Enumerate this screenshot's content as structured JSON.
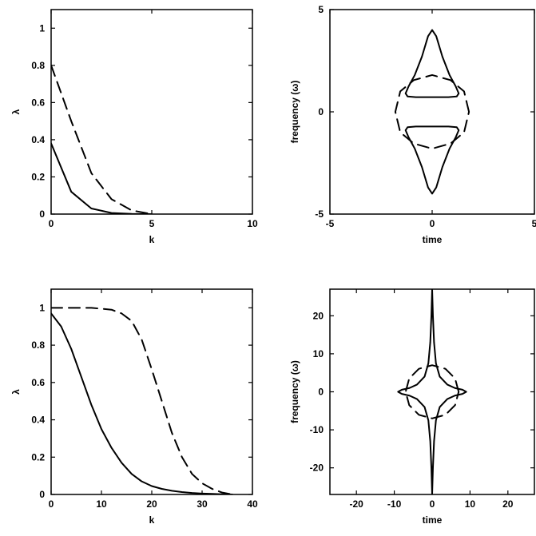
{
  "chart_data": [
    {
      "type": "line",
      "xlabel": "k",
      "ylabel": "λ",
      "xlim": [
        0,
        10
      ],
      "ylim": [
        0,
        1.1
      ],
      "xticks": [
        0,
        5,
        10
      ],
      "yticks": [
        0,
        0.2,
        0.4,
        0.6,
        0.8,
        1
      ],
      "series": [
        {
          "style": "solid",
          "x": [
            0,
            1,
            2,
            3,
            4,
            5
          ],
          "y": [
            0.38,
            0.12,
            0.03,
            0.006,
            0.001,
            0.0
          ]
        },
        {
          "style": "dashed",
          "x": [
            0,
            1,
            2,
            3,
            4,
            5
          ],
          "y": [
            0.8,
            0.5,
            0.22,
            0.08,
            0.02,
            0.0
          ]
        }
      ]
    },
    {
      "type": "line",
      "xlabel": "time",
      "ylabel": "frequency (ω)",
      "xlim": [
        -5,
        5
      ],
      "ylim": [
        -5,
        5
      ],
      "xticks": [
        -5,
        0,
        5
      ],
      "yticks": [
        -5,
        0,
        5
      ],
      "series": [
        {
          "style": "solid",
          "x": [
            0,
            -0.2,
            -0.5,
            -0.85,
            -1.15,
            -1.3,
            -1.2,
            -0.8,
            0,
            0.8,
            1.2,
            1.3,
            1.15,
            0.85,
            0.5,
            0.2,
            0
          ],
          "y": [
            4.0,
            3.7,
            2.7,
            1.8,
            1.25,
            0.9,
            0.75,
            0.72,
            0.72,
            0.72,
            0.75,
            0.9,
            1.25,
            1.8,
            2.7,
            3.7,
            4.0
          ]
        },
        {
          "style": "solid",
          "x": [
            0,
            -0.2,
            -0.5,
            -0.85,
            -1.15,
            -1.3,
            -1.2,
            -0.8,
            0,
            0.8,
            1.2,
            1.3,
            1.15,
            0.85,
            0.5,
            0.2,
            0
          ],
          "y": [
            -4.0,
            -3.7,
            -2.7,
            -1.8,
            -1.25,
            -0.9,
            -0.75,
            -0.72,
            -0.72,
            -0.72,
            -0.75,
            -0.9,
            -1.25,
            -1.8,
            -2.7,
            -3.7,
            -4.0
          ]
        },
        {
          "style": "dashed",
          "x": [
            1.8,
            1.56,
            0.9,
            0,
            -0.9,
            -1.56,
            -1.8,
            -1.56,
            -0.9,
            0,
            0.9,
            1.56,
            1.8
          ],
          "y": [
            0,
            1.0,
            1.55,
            1.8,
            1.55,
            1.0,
            0,
            -1.0,
            -1.55,
            -1.8,
            -1.55,
            -1.0,
            0
          ]
        }
      ]
    },
    {
      "type": "line",
      "xlabel": "k",
      "ylabel": "λ",
      "xlim": [
        0,
        40
      ],
      "ylim": [
        0,
        1.1
      ],
      "xticks": [
        0,
        10,
        20,
        30,
        40
      ],
      "yticks": [
        0,
        0.2,
        0.4,
        0.6,
        0.8,
        1
      ],
      "series": [
        {
          "style": "solid",
          "x": [
            0,
            2,
            4,
            6,
            8,
            10,
            12,
            14,
            16,
            18,
            20,
            22,
            24,
            26,
            28,
            30,
            32,
            34,
            36
          ],
          "y": [
            0.97,
            0.9,
            0.78,
            0.63,
            0.48,
            0.35,
            0.25,
            0.17,
            0.11,
            0.07,
            0.045,
            0.03,
            0.02,
            0.013,
            0.008,
            0.005,
            0.003,
            0.001,
            0.0
          ]
        },
        {
          "style": "dashed",
          "x": [
            0,
            4,
            8,
            12,
            14,
            16,
            18,
            20,
            22,
            24,
            26,
            28,
            30,
            32,
            34,
            36
          ],
          "y": [
            1.0,
            1.0,
            1.0,
            0.99,
            0.97,
            0.93,
            0.83,
            0.67,
            0.5,
            0.33,
            0.2,
            0.11,
            0.06,
            0.03,
            0.01,
            0.0
          ]
        }
      ]
    },
    {
      "type": "line",
      "xlabel": "time",
      "ylabel": "frequency (ω)",
      "xlim": [
        -27,
        27
      ],
      "ylim": [
        -27,
        27
      ],
      "xticks": [
        -20,
        -10,
        0,
        10,
        20
      ],
      "yticks": [
        -20,
        -10,
        0,
        10,
        20
      ],
      "series": [
        {
          "style": "solid",
          "x": [
            0,
            0.2,
            0.5,
            1.0,
            2.0,
            4.0,
            6.0,
            8.0,
            9.0,
            8.0,
            6.0,
            4.0,
            2.0,
            1.0,
            0.5,
            0.2,
            0,
            -0.2,
            -0.5,
            -1.0,
            -2.0,
            -4.0,
            -6.0,
            -8.0,
            -9.0,
            -8.0,
            -6.0,
            -4.0,
            -2.0,
            -1.0,
            -0.5,
            -0.2,
            0
          ],
          "y": [
            27,
            20,
            13,
            7.5,
            4.0,
            1.9,
            1.0,
            0.55,
            0,
            -0.55,
            -1.0,
            -1.9,
            -4.0,
            -7.5,
            -13,
            -20,
            -27,
            -20,
            -13,
            -7.5,
            -4.0,
            -1.9,
            -1.0,
            -0.55,
            0,
            0.55,
            1.0,
            1.9,
            4.0,
            7.5,
            13,
            20,
            27
          ]
        },
        {
          "style": "dashed",
          "x": [
            7,
            6.06,
            3.5,
            0,
            -3.5,
            -6.06,
            -7,
            -6.06,
            -3.5,
            0,
            3.5,
            6.06,
            7
          ],
          "y": [
            0,
            3.5,
            6.06,
            7,
            6.06,
            3.5,
            0,
            -3.5,
            -6.06,
            -7,
            -6.06,
            -3.5,
            0
          ]
        }
      ]
    }
  ]
}
